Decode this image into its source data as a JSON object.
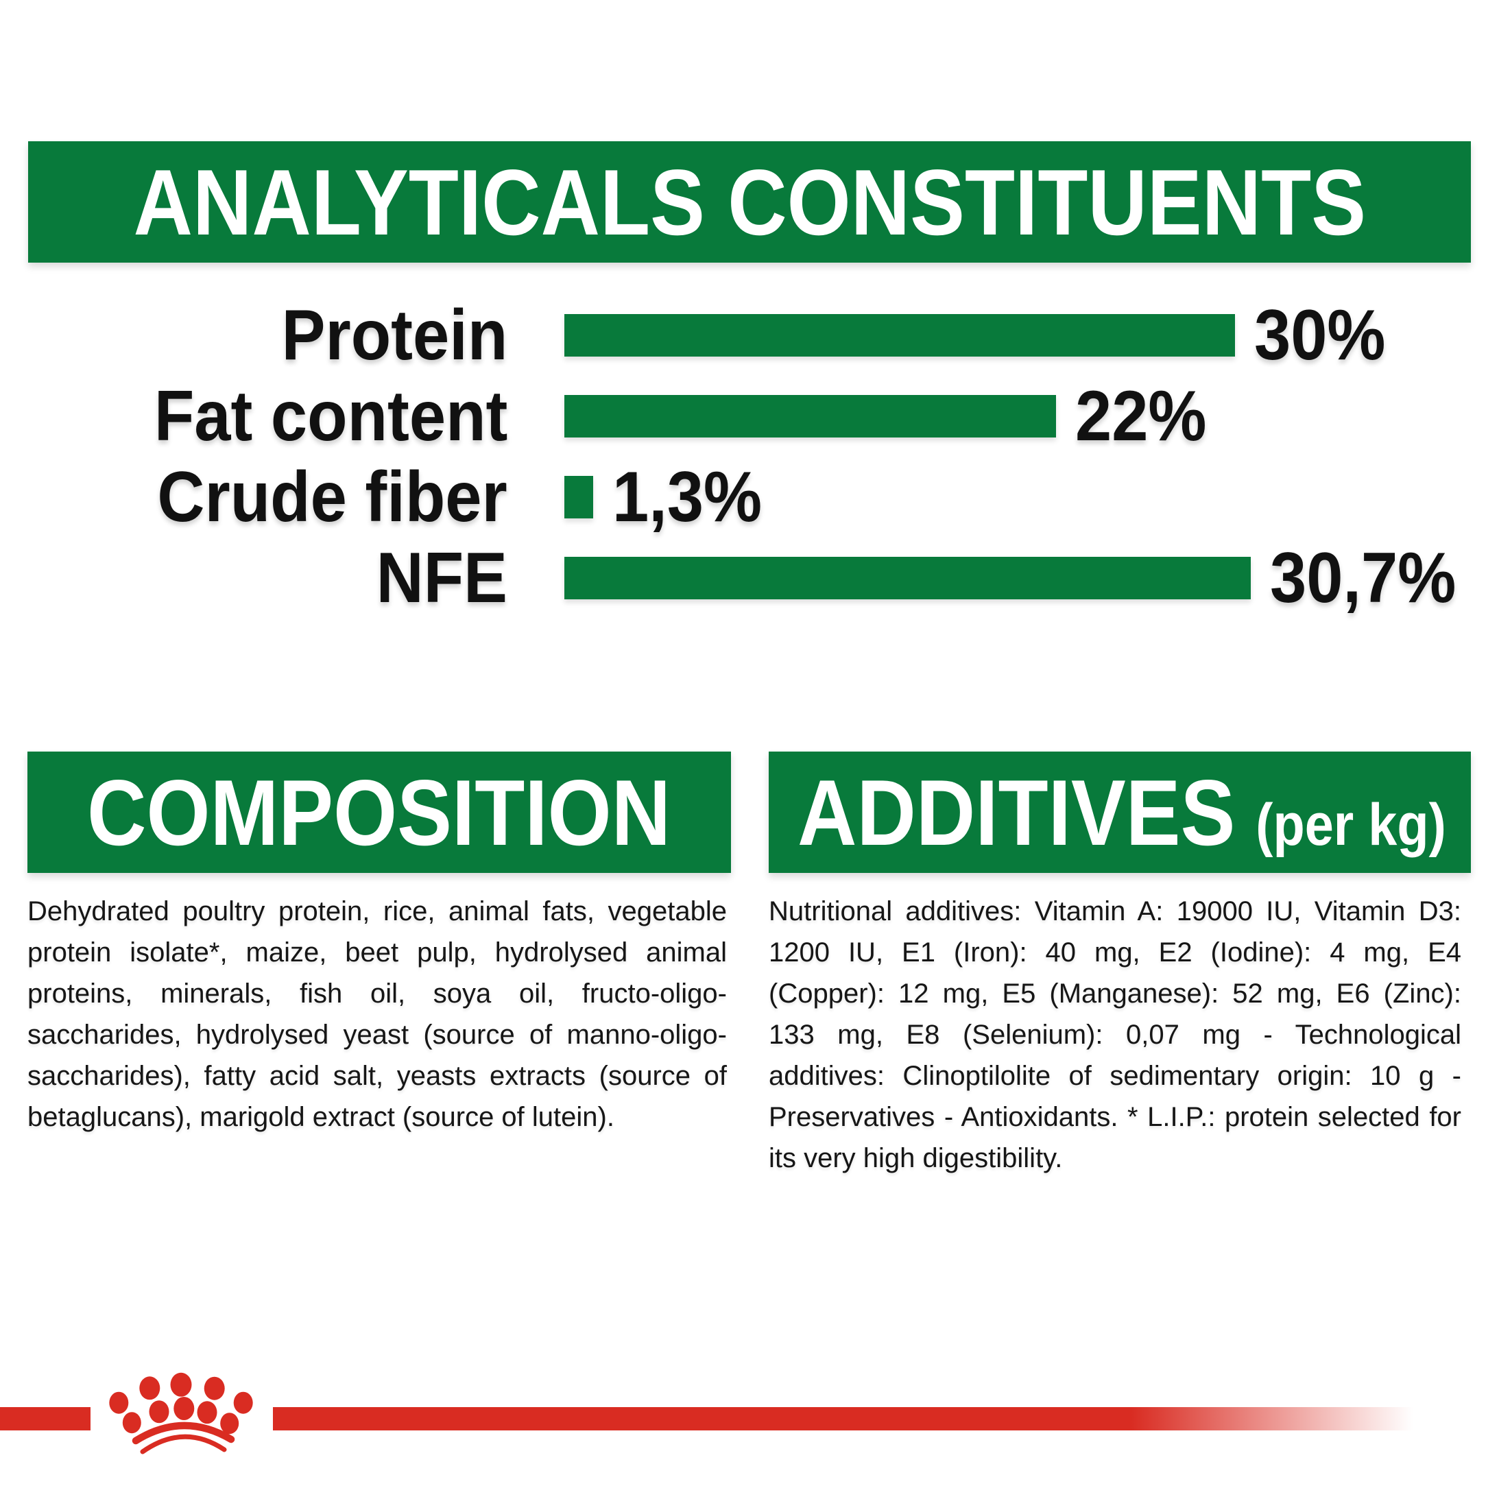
{
  "page": {
    "background": "#ffffff",
    "brand_green": "#087a3b",
    "brand_red": "#d92c22"
  },
  "header": {
    "title": "ANALYTICALS CONSTITUENTS"
  },
  "chart_data": {
    "type": "bar",
    "orientation": "horizontal",
    "title": "ANALYTICALS CONSTITUENTS",
    "categories": [
      "Protein",
      "Fat content",
      "Crude fiber",
      "NFE"
    ],
    "values": [
      30,
      22,
      1.3,
      30.7
    ],
    "value_labels": [
      "30%",
      "22%",
      "1,3%",
      "30,7%"
    ],
    "unit": "percent",
    "bar_color": "#087a3b",
    "xlim": [
      0,
      33
    ],
    "grid": false,
    "legend": false
  },
  "composition": {
    "title": "COMPOSITION",
    "body": "Dehydrated poultry protein, rice, animal fats, vegetable protein isolate*, maize, beet pulp, hydrolysed animal proteins, minerals, fish oil, soya oil, fructo-oligo-saccharides, hydrolysed yeast (source of manno-oligo-saccharides), fatty acid salt, yeasts extracts (source of betaglucans), marigold extract (source of lutein)."
  },
  "additives": {
    "title": "ADDITIVES",
    "suffix": "(per kg)",
    "body": "Nutritional additives: Vitamin A: 19000 IU, Vitamin D3: 1200 IU, E1 (Iron): 40 mg, E2 (Iodine): 4 mg, E4 (Copper): 12 mg, E5 (Manganese): 52 mg, E6 (Zinc): 133 mg, E8 (Selenium): 0,07 mg - Technological additives: Clinoptilolite of sedimentary origin: 10 g - Preservatives - Antioxidants. * L.I.P.: protein selected for its very high digestibility."
  },
  "footer": {
    "logo": "royal-canin-crown-paw-logo"
  }
}
